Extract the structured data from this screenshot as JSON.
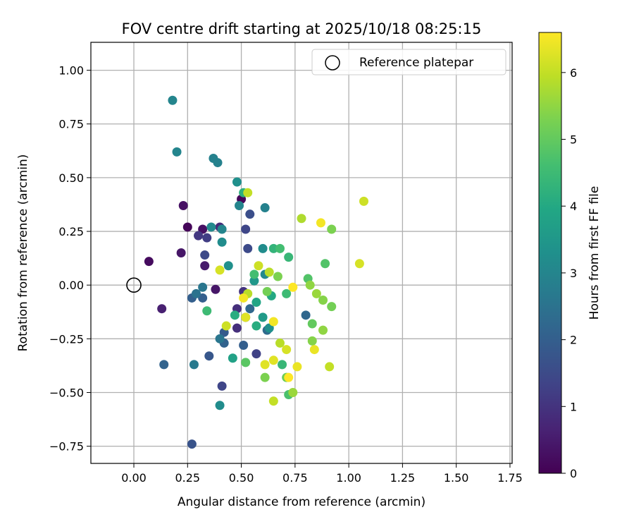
{
  "chart_data": {
    "type": "scatter",
    "title": "FOV centre drift starting at 2025/10/18 08:25:15",
    "xlabel": "Angular distance from reference (arcmin)",
    "ylabel": "Rotation from reference (arcmin)",
    "xlim": [
      -0.2,
      1.76
    ],
    "ylim": [
      -0.83,
      1.13
    ],
    "xticks": [
      0.0,
      0.25,
      0.5,
      0.75,
      1.0,
      1.25,
      1.5,
      1.75
    ],
    "xtick_labels": [
      "0.00",
      "0.25",
      "0.50",
      "0.75",
      "1.00",
      "1.25",
      "1.50",
      "1.75"
    ],
    "yticks": [
      -0.75,
      -0.5,
      -0.25,
      0.0,
      0.25,
      0.5,
      0.75,
      1.0
    ],
    "ytick_labels": [
      "−0.75",
      "−0.50",
      "−0.25",
      "0.00",
      "0.25",
      "0.50",
      "0.75",
      "1.00"
    ],
    "grid": true,
    "legend": {
      "position": "top-right",
      "entries": [
        "Reference platepar"
      ]
    },
    "reference_point": {
      "x": 0.0,
      "y": 0.0,
      "label": "Reference platepar"
    },
    "colorbar": {
      "label": "Hours from first FF file",
      "colormap": "viridis",
      "range": [
        0,
        6.6
      ],
      "ticks": [
        0,
        1,
        2,
        3,
        4,
        5,
        6
      ],
      "tick_labels": [
        "0",
        "1",
        "2",
        "3",
        "4",
        "5",
        "6"
      ]
    },
    "series": [
      {
        "name": "FOV centre",
        "points": [
          {
            "x": 0.07,
            "y": 0.11,
            "c": 0.2
          },
          {
            "x": 0.13,
            "y": -0.11,
            "c": 0.6
          },
          {
            "x": 0.23,
            "y": 0.37,
            "c": 0.3
          },
          {
            "x": 0.22,
            "y": 0.15,
            "c": 0.4
          },
          {
            "x": 0.25,
            "y": 0.27,
            "c": 0.1
          },
          {
            "x": 0.32,
            "y": 0.26,
            "c": 0.3
          },
          {
            "x": 0.33,
            "y": 0.09,
            "c": 0.5
          },
          {
            "x": 0.38,
            "y": -0.02,
            "c": 0.4
          },
          {
            "x": 0.5,
            "y": 0.4,
            "c": 0.1
          },
          {
            "x": 0.4,
            "y": 0.27,
            "c": 0.8
          },
          {
            "x": 0.3,
            "y": 0.23,
            "c": 1.1
          },
          {
            "x": 0.34,
            "y": 0.22,
            "c": 1.2
          },
          {
            "x": 0.33,
            "y": 0.14,
            "c": 1.5
          },
          {
            "x": 0.48,
            "y": -0.11,
            "c": 0.9
          },
          {
            "x": 0.51,
            "y": -0.03,
            "c": 1.0
          },
          {
            "x": 0.48,
            "y": -0.2,
            "c": 0.9
          },
          {
            "x": 0.52,
            "y": 0.26,
            "c": 1.4
          },
          {
            "x": 0.53,
            "y": 0.17,
            "c": 1.5
          },
          {
            "x": 0.54,
            "y": 0.33,
            "c": 1.6
          },
          {
            "x": 0.57,
            "y": -0.32,
            "c": 1.3
          },
          {
            "x": 0.41,
            "y": -0.47,
            "c": 1.4
          },
          {
            "x": 0.14,
            "y": -0.37,
            "c": 2.1
          },
          {
            "x": 0.27,
            "y": -0.74,
            "c": 1.7
          },
          {
            "x": 0.27,
            "y": -0.06,
            "c": 2.0
          },
          {
            "x": 0.32,
            "y": -0.06,
            "c": 2.0
          },
          {
            "x": 0.35,
            "y": -0.33,
            "c": 1.8
          },
          {
            "x": 0.42,
            "y": -0.22,
            "c": 1.9
          },
          {
            "x": 0.42,
            "y": -0.27,
            "c": 2.1
          },
          {
            "x": 0.51,
            "y": -0.28,
            "c": 2.0
          },
          {
            "x": 0.52,
            "y": -0.15,
            "c": 1.9
          },
          {
            "x": 0.54,
            "y": -0.11,
            "c": 2.2
          },
          {
            "x": 0.62,
            "y": -0.21,
            "c": 2.3
          },
          {
            "x": 0.8,
            "y": -0.14,
            "c": 2.2
          },
          {
            "x": 0.29,
            "y": -0.04,
            "c": 2.5
          },
          {
            "x": 0.32,
            "y": -0.01,
            "c": 2.6
          },
          {
            "x": 0.4,
            "y": -0.25,
            "c": 2.6
          },
          {
            "x": 0.28,
            "y": -0.37,
            "c": 2.7
          },
          {
            "x": 0.18,
            "y": 0.86,
            "c": 3.0
          },
          {
            "x": 0.2,
            "y": 0.62,
            "c": 3.0
          },
          {
            "x": 0.37,
            "y": 0.59,
            "c": 2.9
          },
          {
            "x": 0.39,
            "y": 0.57,
            "c": 2.9
          },
          {
            "x": 0.49,
            "y": 0.37,
            "c": 3.0
          },
          {
            "x": 0.48,
            "y": 0.48,
            "c": 3.3
          },
          {
            "x": 0.61,
            "y": 0.36,
            "c": 2.9
          },
          {
            "x": 0.41,
            "y": 0.26,
            "c": 3.0
          },
          {
            "x": 0.36,
            "y": 0.27,
            "c": 3.1
          },
          {
            "x": 0.41,
            "y": 0.2,
            "c": 3.2
          },
          {
            "x": 0.44,
            "y": 0.09,
            "c": 3.3
          },
          {
            "x": 0.6,
            "y": 0.17,
            "c": 3.2
          },
          {
            "x": 0.61,
            "y": 0.05,
            "c": 3.1
          },
          {
            "x": 0.4,
            "y": -0.56,
            "c": 3.2
          },
          {
            "x": 0.63,
            "y": -0.2,
            "c": 3.3
          },
          {
            "x": 0.56,
            "y": 0.02,
            "c": 3.5
          },
          {
            "x": 0.6,
            "y": -0.15,
            "c": 3.6
          },
          {
            "x": 0.46,
            "y": -0.34,
            "c": 3.8
          },
          {
            "x": 0.57,
            "y": -0.08,
            "c": 3.9
          },
          {
            "x": 0.64,
            "y": -0.05,
            "c": 4.0
          },
          {
            "x": 0.47,
            "y": -0.14,
            "c": 4.1
          },
          {
            "x": 0.51,
            "y": 0.43,
            "c": 4.2
          },
          {
            "x": 0.57,
            "y": -0.19,
            "c": 4.1
          },
          {
            "x": 0.65,
            "y": 0.17,
            "c": 4.3
          },
          {
            "x": 0.72,
            "y": 0.13,
            "c": 4.4
          },
          {
            "x": 0.34,
            "y": -0.12,
            "c": 4.5
          },
          {
            "x": 0.56,
            "y": 0.05,
            "c": 4.6
          },
          {
            "x": 0.69,
            "y": -0.37,
            "c": 4.4
          },
          {
            "x": 0.71,
            "y": -0.04,
            "c": 4.5
          },
          {
            "x": 0.68,
            "y": 0.17,
            "c": 4.6
          },
          {
            "x": 0.81,
            "y": 0.03,
            "c": 4.8
          },
          {
            "x": 0.72,
            "y": -0.51,
            "c": 4.7
          },
          {
            "x": 0.89,
            "y": 0.1,
            "c": 4.8
          },
          {
            "x": 0.52,
            "y": -0.36,
            "c": 4.9
          },
          {
            "x": 0.83,
            "y": -0.18,
            "c": 5.0
          },
          {
            "x": 0.62,
            "y": -0.03,
            "c": 5.2
          },
          {
            "x": 0.67,
            "y": 0.04,
            "c": 5.3
          },
          {
            "x": 0.61,
            "y": -0.43,
            "c": 5.3
          },
          {
            "x": 0.71,
            "y": -0.43,
            "c": 5.1
          },
          {
            "x": 0.83,
            "y": -0.26,
            "c": 5.4
          },
          {
            "x": 0.82,
            "y": 0.0,
            "c": 5.5
          },
          {
            "x": 0.85,
            "y": -0.04,
            "c": 5.6
          },
          {
            "x": 0.92,
            "y": 0.26,
            "c": 5.3
          },
          {
            "x": 0.88,
            "y": -0.07,
            "c": 5.4
          },
          {
            "x": 0.92,
            "y": -0.1,
            "c": 5.2
          },
          {
            "x": 0.88,
            "y": -0.21,
            "c": 5.5
          },
          {
            "x": 0.74,
            "y": -0.5,
            "c": 5.6
          },
          {
            "x": 0.78,
            "y": 0.31,
            "c": 5.8
          },
          {
            "x": 0.68,
            "y": -0.27,
            "c": 5.9
          },
          {
            "x": 0.63,
            "y": 0.06,
            "c": 5.9
          },
          {
            "x": 0.53,
            "y": 0.43,
            "c": 6.0
          },
          {
            "x": 0.53,
            "y": -0.04,
            "c": 5.9
          },
          {
            "x": 0.65,
            "y": -0.54,
            "c": 6.0
          },
          {
            "x": 0.91,
            "y": -0.38,
            "c": 6.0
          },
          {
            "x": 1.07,
            "y": 0.39,
            "c": 6.1
          },
          {
            "x": 1.05,
            "y": 0.1,
            "c": 6.2
          },
          {
            "x": 0.4,
            "y": 0.07,
            "c": 6.2
          },
          {
            "x": 0.43,
            "y": -0.19,
            "c": 6.1
          },
          {
            "x": 0.58,
            "y": 0.09,
            "c": 6.1
          },
          {
            "x": 0.52,
            "y": -0.15,
            "c": 6.3
          },
          {
            "x": 0.61,
            "y": -0.37,
            "c": 6.3
          },
          {
            "x": 0.65,
            "y": -0.35,
            "c": 6.3
          },
          {
            "x": 0.71,
            "y": -0.3,
            "c": 6.2
          },
          {
            "x": 0.76,
            "y": -0.38,
            "c": 6.4
          },
          {
            "x": 0.84,
            "y": -0.3,
            "c": 6.4
          },
          {
            "x": 0.87,
            "y": 0.29,
            "c": 6.5
          },
          {
            "x": 0.51,
            "y": -0.06,
            "c": 6.5
          },
          {
            "x": 0.65,
            "y": -0.17,
            "c": 6.5
          },
          {
            "x": 0.74,
            "y": -0.01,
            "c": 6.6
          },
          {
            "x": 0.72,
            "y": -0.43,
            "c": 6.6
          }
        ]
      }
    ]
  }
}
